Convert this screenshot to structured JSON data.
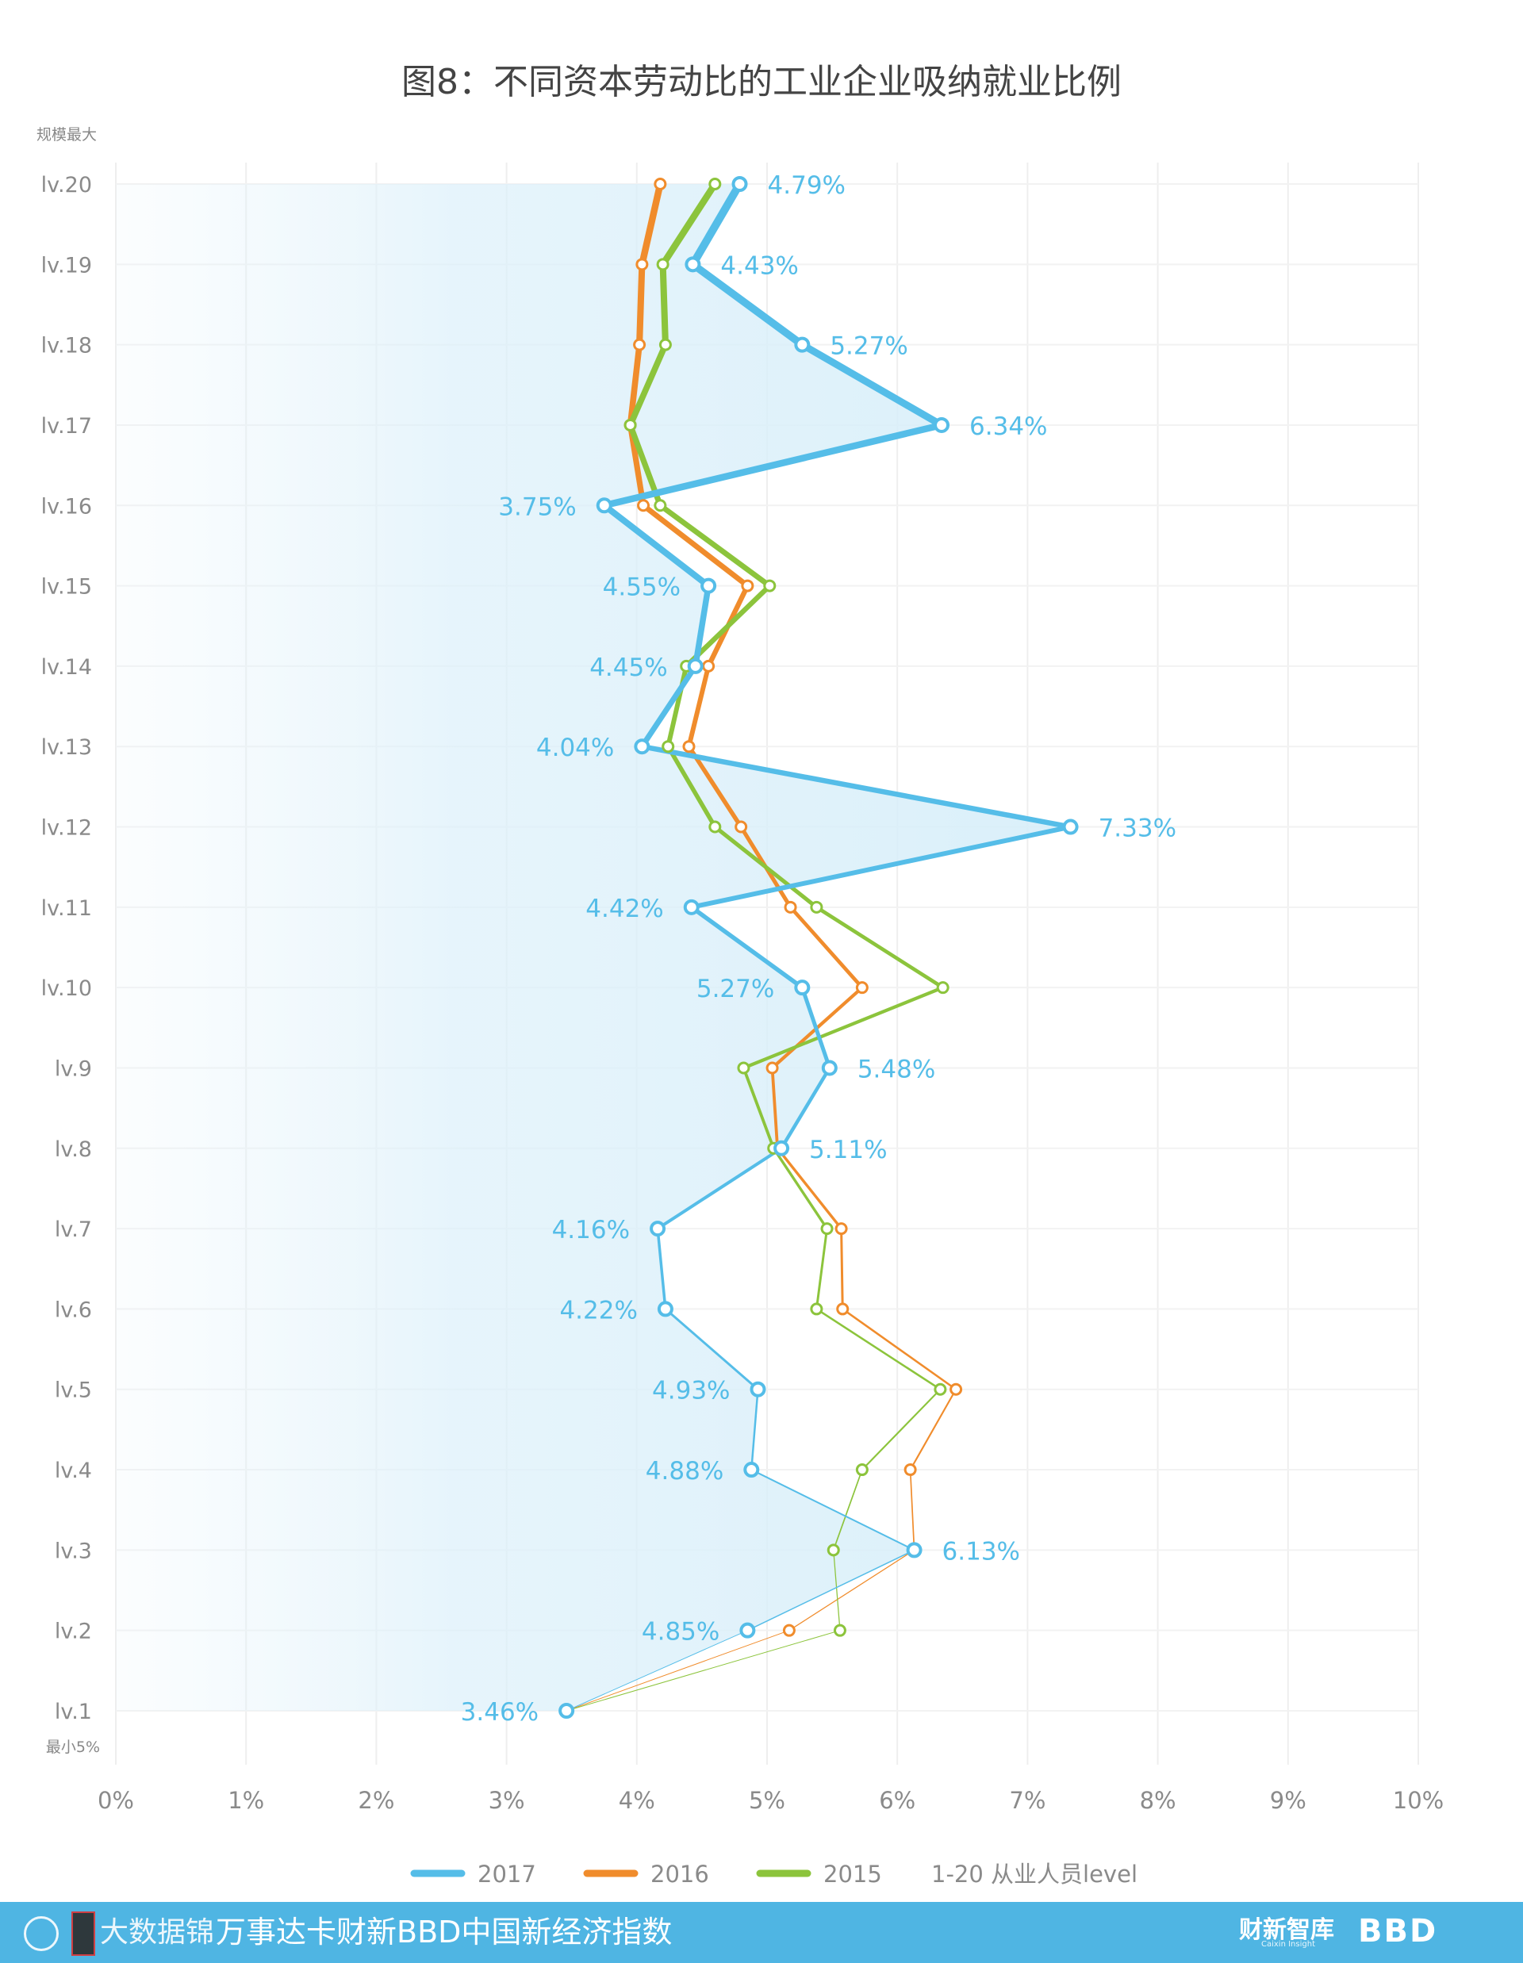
{
  "chart_data": {
    "type": "line",
    "title": "图8：不同资本劳动比的工业企业吸纳就业比例",
    "orientation": "horizontal-values",
    "categories": [
      "lv.20",
      "lv.19",
      "lv.18",
      "lv.17",
      "lv.16",
      "lv.15",
      "lv.14",
      "lv.13",
      "lv.12",
      "lv.11",
      "lv.10",
      "lv.9",
      "lv.8",
      "lv.7",
      "lv.6",
      "lv.5",
      "lv.4",
      "lv.3",
      "lv.2",
      "lv.1"
    ],
    "series": [
      {
        "name": "2017",
        "color": "#55bde8",
        "values": [
          4.79,
          4.43,
          5.27,
          6.34,
          3.75,
          4.55,
          4.45,
          4.04,
          7.33,
          4.42,
          5.27,
          5.48,
          5.11,
          4.16,
          4.22,
          4.93,
          4.88,
          6.13,
          4.85,
          3.46
        ],
        "labels": [
          "4.79%",
          "4.43%",
          "5.27%",
          "6.34%",
          "3.75%",
          "4.55%",
          "4.45%",
          "4.04%",
          "7.33%",
          "4.42%",
          "5.27%",
          "5.48%",
          "5.11%",
          "4.16%",
          "4.22%",
          "4.93%",
          "4.88%",
          "6.13%",
          "4.85%",
          "3.46%"
        ]
      },
      {
        "name": "2016",
        "color": "#f08c2c",
        "values": [
          4.18,
          4.04,
          4.02,
          3.95,
          4.05,
          4.85,
          4.55,
          4.4,
          4.8,
          5.18,
          5.73,
          5.04,
          5.08,
          5.57,
          5.58,
          6.45,
          6.1,
          6.13,
          5.17,
          3.46
        ]
      },
      {
        "name": "2015",
        "color": "#8cc43c",
        "values": [
          4.6,
          4.2,
          4.22,
          3.95,
          4.18,
          5.02,
          4.38,
          4.24,
          4.6,
          5.38,
          6.35,
          4.82,
          5.05,
          5.46,
          5.38,
          6.33,
          5.73,
          5.51,
          5.56,
          3.46
        ]
      }
    ],
    "xlim": [
      0,
      10
    ],
    "xticks": [
      "0%",
      "1%",
      "2%",
      "3%",
      "4%",
      "5%",
      "6%",
      "7%",
      "8%",
      "9%",
      "10%"
    ],
    "ytop_label": "规模最大",
    "ybottom_label": "最小5%",
    "legend": [
      "2017",
      "2016",
      "2015"
    ],
    "legend_note": "1-20   从业人员level",
    "legend_position": "bottom",
    "grid": true
  },
  "footer": {
    "brand": "大数据锦",
    "slogan": "万事达卡财新BBD中国新经济指数",
    "logo_caixin": "财新智库",
    "logo_caixin_sub": "Caixin Insight",
    "logo_bbd": "BBD"
  }
}
